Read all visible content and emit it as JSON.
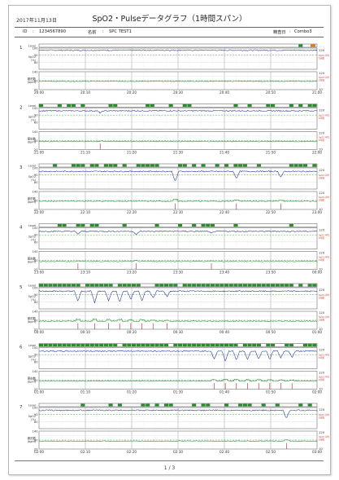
{
  "report": {
    "date": "2017年11月13日",
    "title": "SpO2・Pulseデータグラフ（1時間スパン）",
    "id_label": "ID",
    "id_value": "1234567890",
    "name_label": "名前",
    "name_value": "SPC TEST1",
    "device_label": "精査日",
    "device_value": "Combo3",
    "page": "1 / 3"
  },
  "colors": {
    "spo2": "#1f2f9a",
    "pulse": "#1c8a2a",
    "event": "#2c8a2c",
    "marker": "#b02020",
    "alarm": "#c0392b"
  },
  "chart_data": {
    "type": "line",
    "row_labels": {
      "level": "Level",
      "spo2": "SpO2\n(%)",
      "pulse": "脈拍数\n(bpm)"
    },
    "spo2_ticks": [
      "100",
      "90",
      "80"
    ],
    "pulse_ticks": [
      "140",
      "80",
      "20"
    ],
    "right_spo2_tick": "120",
    "right_pulse_tick": "10",
    "right_notes": [
      "SpO2 平均",
      "1時間"
    ],
    "panels": [
      {
        "index": "1",
        "x": [
          "20:00",
          "20:10",
          "20:20",
          "20:30",
          "20:40",
          "20:50",
          "21:00"
        ],
        "spo2_mean": 97,
        "pulse_mean": 76,
        "activity": 0.05,
        "dips": []
      },
      {
        "index": "2",
        "x": [
          "21:00",
          "21:10",
          "21:20",
          "21:30",
          "21:40",
          "21:50",
          "22:00"
        ],
        "spo2_mean": 96,
        "pulse_mean": 74,
        "activity": 0.3,
        "dips": [
          {
            "t": 0.22,
            "depth": 3
          }
        ]
      },
      {
        "index": "3",
        "x": [
          "22:00",
          "22:10",
          "22:20",
          "22:30",
          "22:40",
          "22:50",
          "23:00"
        ],
        "spo2_mean": 95,
        "pulse_mean": 75,
        "activity": 0.6,
        "dips": [
          {
            "t": 0.49,
            "depth": 15
          },
          {
            "t": 0.71,
            "depth": 10
          },
          {
            "t": 0.87,
            "depth": 8
          }
        ]
      },
      {
        "index": "4",
        "x": [
          "23:00",
          "23:10",
          "23:20",
          "23:30",
          "23:40",
          "23:50",
          "00:00"
        ],
        "spo2_mean": 95,
        "pulse_mean": 73,
        "activity": 0.25,
        "dips": [
          {
            "t": 0.14,
            "depth": 4
          },
          {
            "t": 0.35,
            "depth": 5
          },
          {
            "t": 0.62,
            "depth": 3
          }
        ]
      },
      {
        "index": "5",
        "x": [
          "00:00",
          "00:10",
          "00:20",
          "00:30",
          "00:40",
          "00:50",
          "01:00"
        ],
        "spo2_mean": 95,
        "pulse_mean": 74,
        "activity": 0.9,
        "dips": [
          {
            "t": 0.14,
            "depth": 15
          },
          {
            "t": 0.2,
            "depth": 17
          },
          {
            "t": 0.25,
            "depth": 14
          },
          {
            "t": 0.29,
            "depth": 16
          },
          {
            "t": 0.33,
            "depth": 12
          },
          {
            "t": 0.37,
            "depth": 14
          },
          {
            "t": 0.41,
            "depth": 10
          },
          {
            "t": 0.46,
            "depth": 8
          }
        ]
      },
      {
        "index": "6",
        "x": [
          "01:00",
          "01:10",
          "01:20",
          "01:30",
          "01:40",
          "01:50",
          "02:00"
        ],
        "spo2_mean": 95,
        "pulse_mean": 74,
        "activity": 0.8,
        "dips": [
          {
            "t": 0.63,
            "depth": 12
          },
          {
            "t": 0.67,
            "depth": 14
          },
          {
            "t": 0.71,
            "depth": 13
          },
          {
            "t": 0.75,
            "depth": 12
          },
          {
            "t": 0.79,
            "depth": 11
          },
          {
            "t": 0.83,
            "depth": 12
          },
          {
            "t": 0.87,
            "depth": 10
          },
          {
            "t": 0.91,
            "depth": 9
          }
        ]
      },
      {
        "index": "7",
        "x": [
          "02:00",
          "02:10",
          "02:20",
          "02:30",
          "02:40",
          "02:50",
          "03:00"
        ],
        "spo2_mean": 96,
        "pulse_mean": 73,
        "activity": 0.2,
        "dips": [
          {
            "t": 0.89,
            "depth": 12
          }
        ]
      }
    ]
  }
}
